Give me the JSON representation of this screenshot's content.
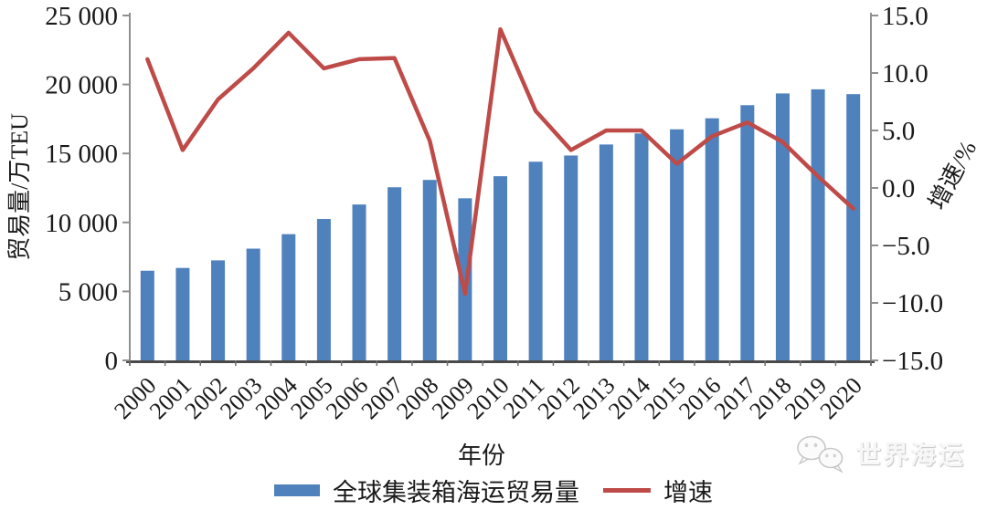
{
  "chart_data": {
    "type": "bar",
    "subtype": "combo-bar-line-dual-axis",
    "categories": [
      "2000",
      "2001",
      "2002",
      "2003",
      "2004",
      "2005",
      "2006",
      "2007",
      "2008",
      "2009",
      "2010",
      "2011",
      "2012",
      "2013",
      "2014",
      "2015",
      "2016",
      "2017",
      "2018",
      "2019",
      "2020"
    ],
    "series": [
      {
        "name": "全球集装箱海运贸易量",
        "type": "bar",
        "axis": "left",
        "color": "#4F81BD",
        "values": [
          6500,
          6700,
          7250,
          8100,
          9150,
          10250,
          11300,
          12550,
          13080,
          11750,
          13350,
          14400,
          14850,
          15650,
          16450,
          16750,
          17550,
          18500,
          19350,
          19650,
          19300
        ]
      },
      {
        "name": "增速",
        "type": "line",
        "axis": "right",
        "color": "#BE4B48",
        "values": [
          11.2,
          3.3,
          7.7,
          10.4,
          13.5,
          10.4,
          11.2,
          11.3,
          4.1,
          -9.2,
          13.8,
          6.7,
          3.3,
          5.0,
          5.0,
          2.1,
          4.5,
          5.7,
          4.0,
          1.0,
          -1.8
        ]
      }
    ],
    "left_axis": {
      "title": "贸易量/万TEU",
      "min": 0,
      "max": 25000,
      "tick_step": 5000,
      "tick_labels": [
        "0",
        "5 000",
        "10 000",
        "15 000",
        "20 000",
        "25 000"
      ]
    },
    "right_axis": {
      "title": "增速/%",
      "min": -15,
      "max": 15,
      "tick_step": 5,
      "tick_labels": [
        "−15.0",
        "−10.0",
        "−5.0",
        "0.0",
        "5.0",
        "10.0",
        "15.0"
      ]
    },
    "x_axis": {
      "title": "年份"
    },
    "grid": false,
    "legend_position": "bottom"
  },
  "legend": {
    "items": [
      {
        "label": "全球集装箱海运贸易量",
        "swatch": "bar",
        "color": "#4F81BD"
      },
      {
        "label": "增速",
        "swatch": "line",
        "color": "#BE4B48"
      }
    ]
  },
  "watermark": {
    "icon": "wechat-icon",
    "text": "世界海运"
  }
}
